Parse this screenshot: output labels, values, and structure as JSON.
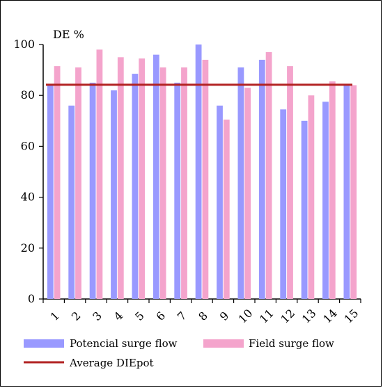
{
  "chart_data": {
    "type": "bar",
    "ylabel": "DE %",
    "ylim": [
      0,
      100
    ],
    "yticks": [
      0,
      20,
      40,
      60,
      80,
      100
    ],
    "categories": [
      "1",
      "2",
      "3",
      "4",
      "5",
      "6",
      "7",
      "8",
      "9",
      "10",
      "11",
      "12",
      "13",
      "14",
      "15"
    ],
    "series": [
      {
        "name": "Potencial surge flow",
        "color": "#9999ff",
        "values": [
          84,
          76,
          85,
          82,
          88.5,
          96,
          85,
          100,
          76,
          91,
          94,
          74.5,
          70,
          77.5,
          84.5
        ]
      },
      {
        "name": "Field surge flow",
        "color": "#f4a4cc",
        "values": [
          91.5,
          91,
          98,
          95,
          94.5,
          91,
          91,
          94,
          70.5,
          83,
          97,
          91.5,
          80,
          85.5,
          84
        ]
      }
    ],
    "reference_line": {
      "name": "Average DIEpot",
      "value": 84.2,
      "color": "#b22222"
    },
    "grid": false,
    "legend_position": "bottom"
  }
}
